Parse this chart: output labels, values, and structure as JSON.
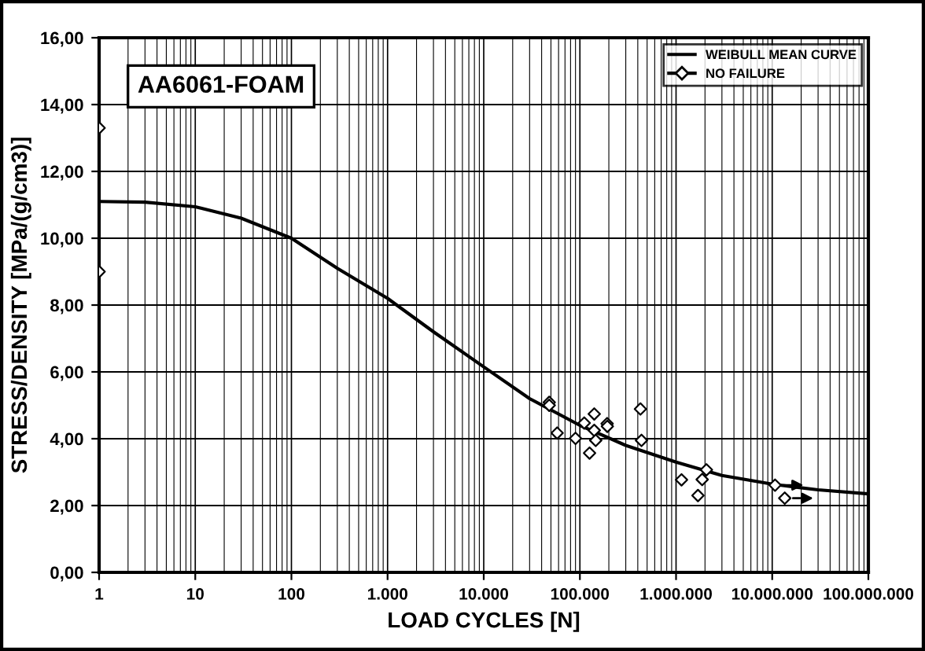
{
  "chart_data": {
    "type": "scatter",
    "xlabel": "LOAD CYCLES [N]",
    "ylabel": "STRESS/DENSITY [MPa/(g/cm3)]",
    "annotations": [
      "AA6061-FOAM"
    ],
    "log": "x",
    "grid": true,
    "legend": "top right",
    "xlim": [
      1,
      100000000
    ],
    "xticks": [
      {
        "value": 1,
        "label": "1"
      },
      {
        "value": 10,
        "label": "10"
      },
      {
        "value": 100,
        "label": "100"
      },
      {
        "value": 1000,
        "label": "1.000"
      },
      {
        "value": 10000,
        "label": "10.000"
      },
      {
        "value": 100000,
        "label": "100.000"
      },
      {
        "value": 1000000,
        "label": "1.000.000"
      },
      {
        "value": 10000000,
        "label": "10.000.000"
      },
      {
        "value": 100000000,
        "label": "100.000.000"
      }
    ],
    "ylim": [
      0,
      16
    ],
    "yticks": [
      {
        "value": 0,
        "label": "0,00"
      },
      {
        "value": 2,
        "label": "2,00"
      },
      {
        "value": 4,
        "label": "4,00"
      },
      {
        "value": 6,
        "label": "6,00"
      },
      {
        "value": 8,
        "label": "8,00"
      },
      {
        "value": 10,
        "label": "10,00"
      },
      {
        "value": 12,
        "label": "12,00"
      },
      {
        "value": 14,
        "label": "14,00"
      },
      {
        "value": 16,
        "label": "16,00"
      }
    ],
    "series": [
      {
        "name": "WEIBULL MEAN CURVE",
        "type": "line",
        "color": "#000000",
        "marker": "none",
        "line_style": "solid",
        "x": [
          1,
          3,
          10,
          30,
          100,
          300,
          1000,
          3000,
          10000,
          30000,
          100000,
          300000,
          1000000,
          3000000,
          10000000,
          30000000,
          100000000
        ],
        "values": [
          11.1,
          11.08,
          10.94,
          10.6,
          10.0,
          9.1,
          8.2,
          7.2,
          6.15,
          5.2,
          4.4,
          3.8,
          3.3,
          2.9,
          2.64,
          2.47,
          2.35
        ]
      },
      {
        "color": "#000000",
        "marker": "diamond",
        "x": [
          1,
          1,
          48000,
          48000,
          58000,
          90000,
          111000,
          126000,
          141000,
          141000,
          146000,
          192000,
          193000,
          426000,
          437000,
          1140000,
          1690000,
          1870000,
          2070000
        ],
        "values": [
          13.3,
          9.0,
          5.09,
          5.0,
          4.17,
          4.01,
          4.47,
          3.57,
          4.74,
          4.25,
          3.95,
          4.45,
          4.37,
          4.89,
          3.95,
          2.77,
          2.3,
          2.78,
          3.07
        ]
      },
      {
        "name": "NO FAILURE",
        "type": "scatter",
        "color": "#000000",
        "marker": "diamond",
        "x": [
          10700000,
          13500000
        ],
        "values": [
          2.61,
          2.22
        ]
      }
    ]
  }
}
